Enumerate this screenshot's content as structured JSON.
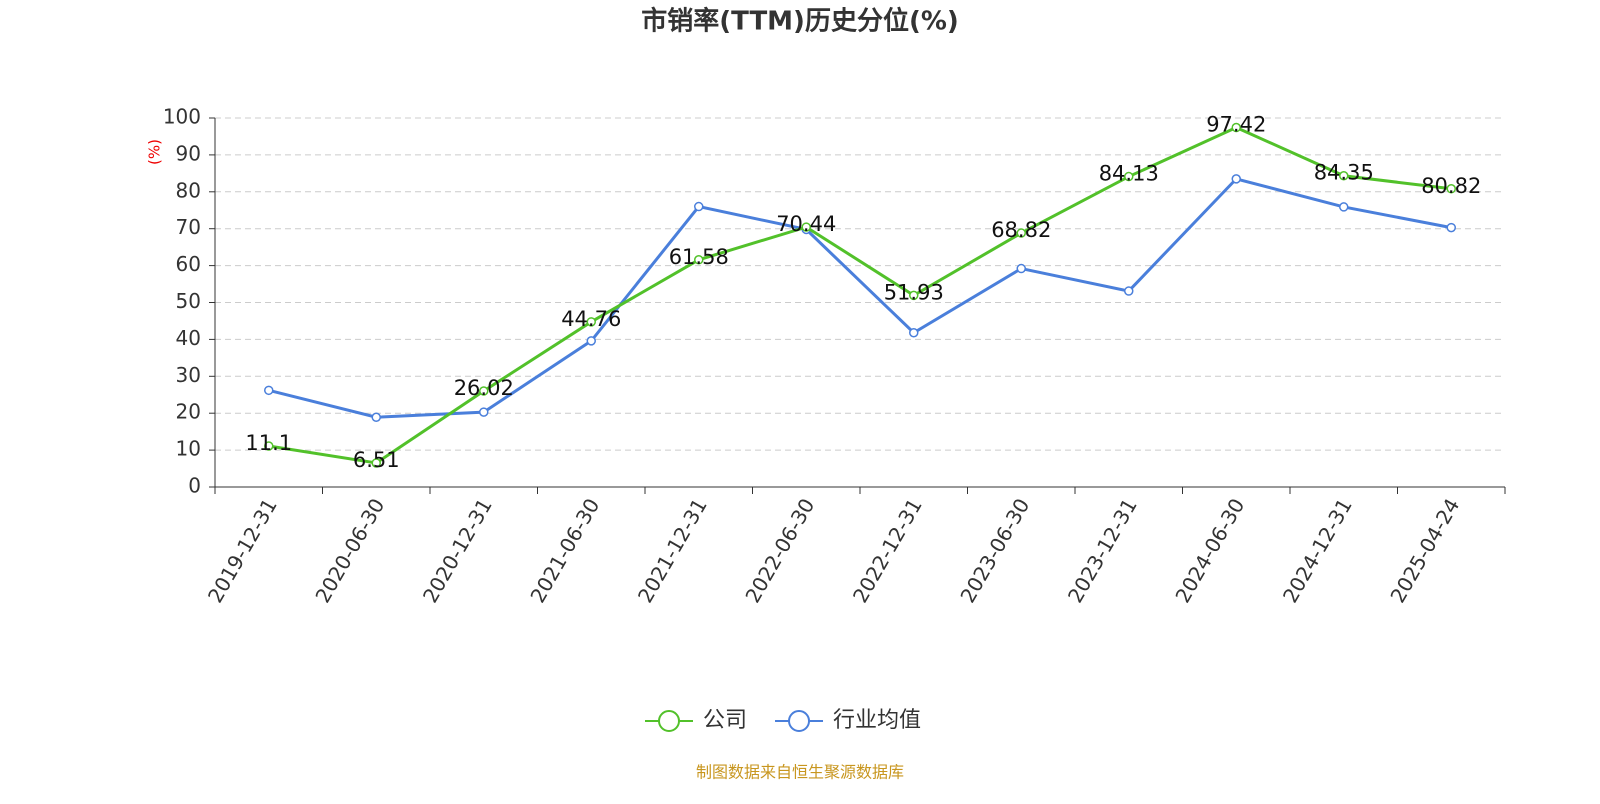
{
  "chart_data": {
    "type": "line",
    "title": "市销率(TTM)历史分位(%)",
    "y_label": "(%)",
    "source": "制图数据来自恒生聚源数据库",
    "categories": [
      "2019-12-31",
      "2020-06-30",
      "2020-12-31",
      "2021-06-30",
      "2021-12-31",
      "2022-06-30",
      "2022-12-31",
      "2023-06-30",
      "2023-12-31",
      "2024-06-30",
      "2024-12-31",
      "2025-04-24"
    ],
    "series": [
      {
        "name": "公司",
        "color": "#52c12a",
        "values": [
          11.1,
          6.51,
          26.02,
          44.76,
          61.58,
          70.44,
          51.93,
          68.82,
          84.13,
          97.42,
          84.35,
          80.82
        ],
        "show_labels": true
      },
      {
        "name": "行业均值",
        "color": "#4a7fdb",
        "values": [
          26.2,
          18.9,
          20.3,
          39.6,
          76.0,
          69.8,
          41.8,
          59.2,
          53.1,
          83.5,
          75.9,
          70.3
        ],
        "show_labels": false
      }
    ],
    "ylim": [
      0,
      100
    ],
    "yticks": [
      0,
      10,
      20,
      30,
      40,
      50,
      60,
      70,
      80,
      90,
      100
    ],
    "grid": true
  }
}
